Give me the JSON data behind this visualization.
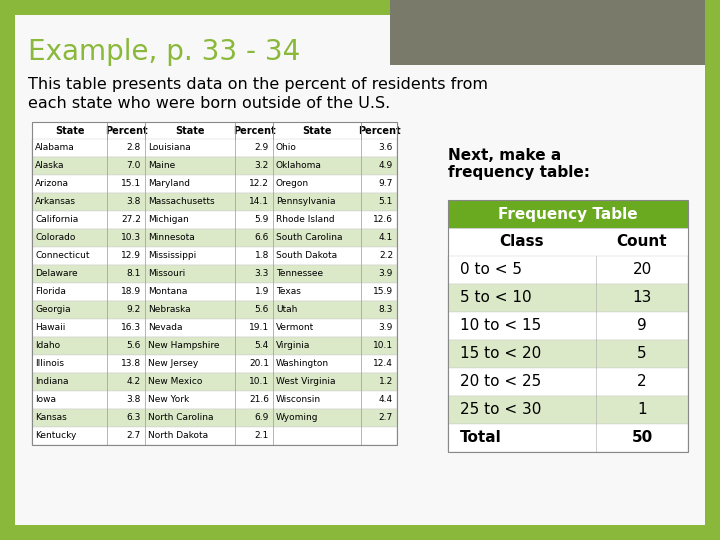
{
  "title": "Example, p. 33 - 34",
  "subtitle_line1": "This table presents data on the percent of residents from",
  "subtitle_line2": "each state who were born outside of the U.S.",
  "bg_outer": "#8ab83a",
  "bg_slide": "#f8f8f8",
  "title_color": "#8ab83a",
  "tab_alt_color": "#dce9c8",
  "tab_white_color": "#ffffff",
  "freq_header_color": "#6aaa20",
  "freq_alt_color": "#dce9c8",
  "freq_white_color": "#ffffff",
  "gray_box_color": "#7a7a6a",
  "state_data": [
    [
      "Alabama",
      "2.8",
      "Louisiana",
      "2.9",
      "Ohio",
      "3.6"
    ],
    [
      "Alaska",
      "7.0",
      "Maine",
      "3.2",
      "Oklahoma",
      "4.9"
    ],
    [
      "Arizona",
      "15.1",
      "Maryland",
      "12.2",
      "Oregon",
      "9.7"
    ],
    [
      "Arkansas",
      "3.8",
      "Massachusetts",
      "14.1",
      "Pennsylvania",
      "5.1"
    ],
    [
      "California",
      "27.2",
      "Michigan",
      "5.9",
      "Rhode Island",
      "12.6"
    ],
    [
      "Colorado",
      "10.3",
      "Minnesota",
      "6.6",
      "South Carolina",
      "4.1"
    ],
    [
      "Connecticut",
      "12.9",
      "Mississippi",
      "1.8",
      "South Dakota",
      "2.2"
    ],
    [
      "Delaware",
      "8.1",
      "Missouri",
      "3.3",
      "Tennessee",
      "3.9"
    ],
    [
      "Florida",
      "18.9",
      "Montana",
      "1.9",
      "Texas",
      "15.9"
    ],
    [
      "Georgia",
      "9.2",
      "Nebraska",
      "5.6",
      "Utah",
      "8.3"
    ],
    [
      "Hawaii",
      "16.3",
      "Nevada",
      "19.1",
      "Vermont",
      "3.9"
    ],
    [
      "Idaho",
      "5.6",
      "New Hampshire",
      "5.4",
      "Virginia",
      "10.1"
    ],
    [
      "Illinois",
      "13.8",
      "New Jersey",
      "20.1",
      "Washington",
      "12.4"
    ],
    [
      "Indiana",
      "4.2",
      "New Mexico",
      "10.1",
      "West Virginia",
      "1.2"
    ],
    [
      "Iowa",
      "3.8",
      "New York",
      "21.6",
      "Wisconsin",
      "4.4"
    ],
    [
      "Kansas",
      "6.3",
      "North Carolina",
      "6.9",
      "Wyoming",
      "2.7"
    ],
    [
      "Kentucky",
      "2.7",
      "North Dakota",
      "2.1",
      "",
      ""
    ]
  ],
  "freq_note_line1": "Next, make a",
  "freq_note_line2": "frequency table:",
  "freq_table_title": "Frequency Table",
  "freq_classes": [
    "0 to < 5",
    "5 to < 10",
    "10 to < 15",
    "15 to < 20",
    "20 to < 25",
    "25 to < 30"
  ],
  "freq_counts": [
    "20",
    "13",
    "9",
    "5",
    "2",
    "1"
  ],
  "freq_total": "50"
}
